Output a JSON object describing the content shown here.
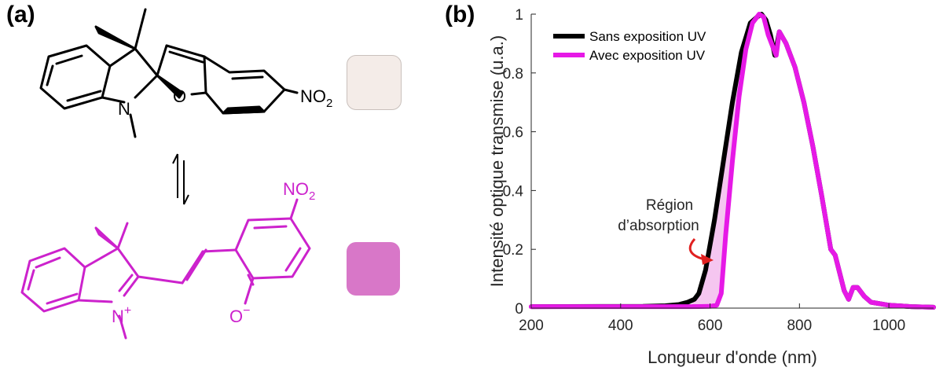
{
  "panel_a": {
    "tag": "(a)",
    "closed_form": {
      "atoms": {
        "N": "N",
        "O": "O",
        "no2_main": "NO",
        "no2_sub": "2"
      }
    },
    "open_form": {
      "atoms": {
        "N": "N",
        "N_charge": "+",
        "O": "O",
        "O_charge": "−",
        "no2_main": "NO",
        "no2_sub": "2"
      }
    },
    "swatch_colors": {
      "closed": "#f4ece8",
      "open": "#d877c8"
    },
    "colors": {
      "closed_structure": "#000000",
      "open_structure": "#cc22cc"
    }
  },
  "panel_b": {
    "tag": "(b)"
  },
  "chart_data": {
    "type": "line",
    "xlabel": "Longueur d'onde (nm)",
    "ylabel": "Intensité optique transmise (u.a.)",
    "xlim": [
      200,
      1100
    ],
    "ylim": [
      0,
      1
    ],
    "xticks": [
      "200",
      "400",
      "600",
      "800",
      "1000"
    ],
    "yticks": [
      "0",
      "0.2",
      "0.4",
      "0.6",
      "0.8",
      "1"
    ],
    "legend_position": "top-left",
    "annotation": {
      "lines": [
        "Région",
        "d’absorption"
      ],
      "arrow_color": "#e02020"
    },
    "fill_color": "#f5c6f0",
    "series": [
      {
        "name": "Sans exposition UV",
        "color": "#000000",
        "x": [
          200,
          450,
          500,
          530,
          550,
          565,
          575,
          590,
          610,
          630,
          650,
          670,
          690,
          705,
          715,
          725,
          735,
          745,
          755,
          770,
          790,
          810,
          830,
          850,
          870,
          880,
          890,
          900,
          910,
          920,
          930,
          945,
          960,
          1000,
          1050,
          1100
        ],
        "y": [
          0.005,
          0.006,
          0.008,
          0.012,
          0.02,
          0.03,
          0.05,
          0.13,
          0.3,
          0.5,
          0.7,
          0.87,
          0.97,
          0.99,
          1.0,
          0.98,
          0.93,
          0.86,
          0.94,
          0.9,
          0.82,
          0.7,
          0.55,
          0.38,
          0.2,
          0.18,
          0.12,
          0.06,
          0.03,
          0.07,
          0.07,
          0.04,
          0.02,
          0.01,
          0.005,
          0.003
        ]
      },
      {
        "name": "Avec exposition UV",
        "color": "#e619e6",
        "x": [
          200,
          450,
          550,
          600,
          615,
          625,
          635,
          650,
          665,
          680,
          695,
          710,
          720,
          730,
          740,
          748,
          755,
          770,
          790,
          810,
          830,
          850,
          870,
          880,
          890,
          900,
          910,
          920,
          930,
          945,
          960,
          1000,
          1050,
          1100
        ],
        "y": [
          0.005,
          0.005,
          0.005,
          0.006,
          0.01,
          0.05,
          0.25,
          0.5,
          0.72,
          0.88,
          0.97,
          1.0,
          0.99,
          0.93,
          0.89,
          0.86,
          0.94,
          0.9,
          0.82,
          0.7,
          0.55,
          0.38,
          0.2,
          0.18,
          0.12,
          0.06,
          0.03,
          0.07,
          0.07,
          0.04,
          0.02,
          0.01,
          0.005,
          0.003
        ]
      }
    ]
  }
}
